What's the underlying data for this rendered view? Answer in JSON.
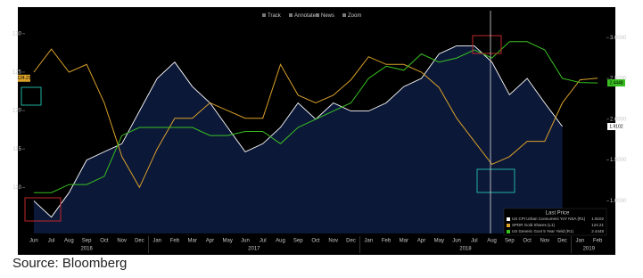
{
  "toolbar": [
    "Track",
    "Annotate",
    "News",
    "Zoom"
  ],
  "source": "Source: Bloomberg",
  "chart_data": {
    "type": "line",
    "categories": [
      "Jun",
      "Jul",
      "Aug",
      "Sep",
      "Oct",
      "Nov",
      "Dec",
      "Jan",
      "Feb",
      "Mar",
      "Apr",
      "May",
      "Jun",
      "Jul",
      "Aug",
      "Sep",
      "Oct",
      "Nov",
      "Dec",
      "Jan",
      "Feb",
      "Mar",
      "Apr",
      "May",
      "Jun",
      "Jul",
      "Aug",
      "Sep",
      "Oct",
      "Nov",
      "Dec",
      "Jan",
      "Feb"
    ],
    "years": [
      "2016",
      "2017",
      "2018",
      "2019"
    ],
    "legend_title": "Last Price",
    "ylim": [
      104,
      133
    ],
    "yticks": [
      110,
      115,
      120,
      125,
      130
    ],
    "y2lim": [
      0.6,
      3.33
    ],
    "y2ticks": [
      {
        "value": 1,
        "label": "1.0000"
      },
      {
        "value": 1.5,
        "label": "1.5000"
      },
      {
        "value": 2,
        "label": "2.0000"
      },
      {
        "value": 2.5,
        "label": "2.5000"
      },
      {
        "value": 3,
        "label": "3.0000"
      }
    ],
    "series": [
      {
        "name": "US CPI Urban Consumers YoY NSA (R1)",
        "color": "#ffffff",
        "fill": "#0c1838",
        "kind": "area",
        "axis": "y2",
        "last": 1.9102,
        "values": [
          1.0,
          0.8,
          1.1,
          1.5,
          1.6,
          1.7,
          2.1,
          2.5,
          2.7,
          2.4,
          2.2,
          1.9,
          1.6,
          1.7,
          1.9,
          2.2,
          2.0,
          2.2,
          2.1,
          2.1,
          2.2,
          2.4,
          2.5,
          2.8,
          2.9,
          2.9,
          2.7,
          2.3,
          2.5,
          2.2,
          1.9102,
          null,
          null
        ]
      },
      {
        "name": "SPDR Gold Shares (L1)",
        "color": "#d9a02a",
        "kind": "line",
        "axis": "y",
        "last": 124.21,
        "values": [
          125,
          128,
          125,
          126,
          121,
          114,
          110,
          115,
          119,
          119,
          121,
          120,
          119,
          119,
          126,
          122,
          121,
          122,
          124,
          127,
          126,
          126,
          125,
          123,
          119,
          116,
          113,
          114,
          116,
          116,
          121,
          124,
          124.21
        ]
      },
      {
        "name": "US Generic Govt 5 Year Yield (R1)",
        "color": "#38c020",
        "kind": "line",
        "axis": "y2",
        "last": 2.4448,
        "values": [
          1.1,
          1.1,
          1.2,
          1.2,
          1.3,
          1.8,
          1.9,
          1.9,
          1.9,
          1.9,
          1.8,
          1.8,
          1.85,
          1.85,
          1.7,
          1.9,
          2.0,
          2.1,
          2.2,
          2.5,
          2.65,
          2.6,
          2.8,
          2.7,
          2.75,
          2.85,
          2.75,
          2.95,
          2.95,
          2.85,
          2.5,
          2.45,
          2.4448
        ]
      }
    ]
  }
}
